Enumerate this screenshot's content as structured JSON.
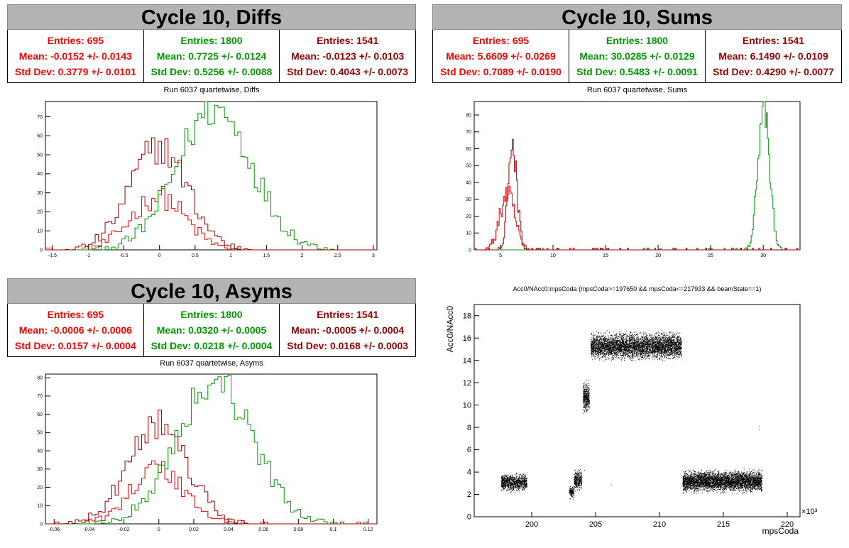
{
  "colors": {
    "red": "#ff0000",
    "darkred": "#990000",
    "green": "#009900"
  },
  "panels": {
    "diffs": {
      "title": "Cycle 10, Diffs",
      "subtitle": "Run 6037 quartetwise, Diffs",
      "stats": [
        {
          "entries": "Entries: 695",
          "mean": "Mean: -0.0152 +/- 0.0143",
          "std": "Std Dev: 0.3779 +/- 0.0101"
        },
        {
          "entries": "Entries: 1800",
          "mean": "Mean: 0.7725 +/- 0.0124",
          "std": "Std Dev: 0.5256 +/- 0.0088"
        },
        {
          "entries": "Entries: 1541",
          "mean": "Mean: -0.0123 +/- 0.0103",
          "std": "Std Dev: 0.4043 +/- 0.0073"
        }
      ]
    },
    "sums": {
      "title": "Cycle 10, Sums",
      "subtitle": "Run 6037 quartetwise, Sums",
      "stats": [
        {
          "entries": "Entries: 695",
          "mean": "Mean: 5.6609 +/- 0.0269",
          "std": "Std Dev: 0.7089 +/- 0.0190"
        },
        {
          "entries": "Entries: 1800",
          "mean": "Mean: 30.0285 +/- 0.0129",
          "std": "Std Dev: 0.5483 +/- 0.0091"
        },
        {
          "entries": "Entries: 1541",
          "mean": "Mean: 6.1490 +/- 0.0109",
          "std": "Std Dev: 0.4290 +/- 0.0077"
        }
      ]
    },
    "asyms": {
      "title": "Cycle 10, Asyms",
      "subtitle": "Run 6037 quartetwise, Asyms",
      "stats": [
        {
          "entries": "Entries: 695",
          "mean": "Mean: -0.0006 +/- 0.0006",
          "std": "Std Dev: 0.0157 +/- 0.0004"
        },
        {
          "entries": "Entries: 1800",
          "mean": "Mean: 0.0320 +/- 0.0005",
          "std": "Std Dev: 0.0218 +/- 0.0004"
        },
        {
          "entries": "Entries: 1541",
          "mean": "Mean: -0.0005 +/- 0.0004",
          "std": "Std Dev: 0.0168 +/- 0.0003"
        }
      ]
    },
    "scatter": {
      "title": "Acc0/NAcc0:mpsCoda (mpsCoda>=197650 && mpsCoda<=217933 && beamState==1)"
    }
  },
  "chart_data": [
    {
      "type": "histogram",
      "title": "Run 6037 quartetwise, Diffs",
      "xlim": [
        -1.6,
        3.05
      ],
      "ylim": [
        0,
        78
      ],
      "xticks": [
        "-1.5",
        "-1",
        "-0.5",
        "0",
        "0.5",
        "1",
        "1.5",
        "2",
        "2.5",
        "3"
      ],
      "xtick_values": [
        -1.5,
        -1,
        -0.5,
        0,
        0.5,
        1,
        1.5,
        2,
        2.5,
        3
      ],
      "yticks": [
        "0",
        "10",
        "20",
        "30",
        "40",
        "50",
        "60",
        "70"
      ],
      "ytick_values": [
        0,
        10,
        20,
        30,
        40,
        50,
        60,
        70
      ],
      "series": [
        {
          "color": "red",
          "entries": 695,
          "mean": -0.0152,
          "std": 0.3779,
          "peak": 28
        },
        {
          "color": "green",
          "entries": 1800,
          "mean": 0.7725,
          "std": 0.5256,
          "peak": 74
        },
        {
          "color": "darkred",
          "entries": 1541,
          "mean": -0.0123,
          "std": 0.4043,
          "peak": 54
        }
      ]
    },
    {
      "type": "histogram",
      "title": "Run 6037 quartetwise, Sums",
      "xlim": [
        2.5,
        33.5
      ],
      "ylim": [
        0,
        88
      ],
      "xticks": [
        "5",
        "10",
        "15",
        "20",
        "25",
        "30"
      ],
      "xtick_values": [
        5,
        10,
        15,
        20,
        25,
        30
      ],
      "yticks": [
        "0",
        "10",
        "20",
        "30",
        "40",
        "50",
        "60",
        "70",
        "80"
      ],
      "ytick_values": [
        0,
        10,
        20,
        30,
        40,
        50,
        60,
        70,
        80
      ],
      "series": [
        {
          "color": "red",
          "entries": 695,
          "mean": 5.6609,
          "std": 0.7089,
          "peak": 33
        },
        {
          "color": "green",
          "entries": 1800,
          "mean": 30.0285,
          "std": 0.5483,
          "peak": 85
        },
        {
          "color": "darkred",
          "entries": 1541,
          "mean": 6.149,
          "std": 0.429,
          "peak": 62
        }
      ]
    },
    {
      "type": "histogram",
      "title": "Run 6037 quartetwise, Asyms",
      "xlim": [
        -0.065,
        0.125
      ],
      "ylim": [
        0,
        82
      ],
      "xticks": [
        "-0.06",
        "-0.04",
        "-0.02",
        "0",
        "0.02",
        "0.04",
        "0.06",
        "0.08",
        "0.1",
        "0.12"
      ],
      "xtick_values": [
        -0.06,
        -0.04,
        -0.02,
        0,
        0.02,
        0.04,
        0.06,
        0.08,
        0.1,
        0.12
      ],
      "yticks": [
        "0",
        "10",
        "20",
        "30",
        "40",
        "50",
        "60",
        "70",
        "80"
      ],
      "ytick_values": [
        0,
        10,
        20,
        30,
        40,
        50,
        60,
        70,
        80
      ],
      "series": [
        {
          "color": "red",
          "entries": 695,
          "mean": -0.0006,
          "std": 0.0157,
          "peak": 30
        },
        {
          "color": "green",
          "entries": 1800,
          "mean": 0.032,
          "std": 0.0218,
          "peak": 78
        },
        {
          "color": "darkred",
          "entries": 1541,
          "mean": -0.0005,
          "std": 0.0168,
          "peak": 54
        }
      ]
    },
    {
      "type": "scatter",
      "title": "Acc0/NAcc0:mpsCoda (mpsCoda>=197650 && mpsCoda<=217933 && beamState==1)",
      "xlabel": "mpsCoda",
      "ylabel": "Acc0/NAcc0",
      "xmultiplier": "×10³",
      "xlim": [
        195.5,
        221
      ],
      "ylim": [
        0,
        19
      ],
      "xticks": [
        "200",
        "205",
        "210",
        "215",
        "220"
      ],
      "xtick_values": [
        200,
        205,
        210,
        215,
        220
      ],
      "yticks": [
        "0",
        "2",
        "4",
        "6",
        "8",
        "10",
        "12",
        "14",
        "16",
        "18"
      ],
      "ytick_values": [
        0,
        2,
        4,
        6,
        8,
        10,
        12,
        14,
        16,
        18
      ],
      "clusters": [
        {
          "x": [
            197.6,
            199.6
          ],
          "y": [
            2.1,
            4.1
          ]
        },
        {
          "x": [
            202.9,
            203.3
          ],
          "y": [
            1.5,
            3.0
          ]
        },
        {
          "x": [
            203.3,
            203.9
          ],
          "y": [
            2.2,
            4.4
          ]
        },
        {
          "x": [
            204.0,
            204.5
          ],
          "y": [
            9.0,
            12.4
          ]
        },
        {
          "x": [
            204.6,
            211.7
          ],
          "y": [
            13.8,
            16.8
          ]
        },
        {
          "x": [
            211.8,
            218.0
          ],
          "y": [
            2.0,
            4.4
          ]
        }
      ]
    }
  ]
}
